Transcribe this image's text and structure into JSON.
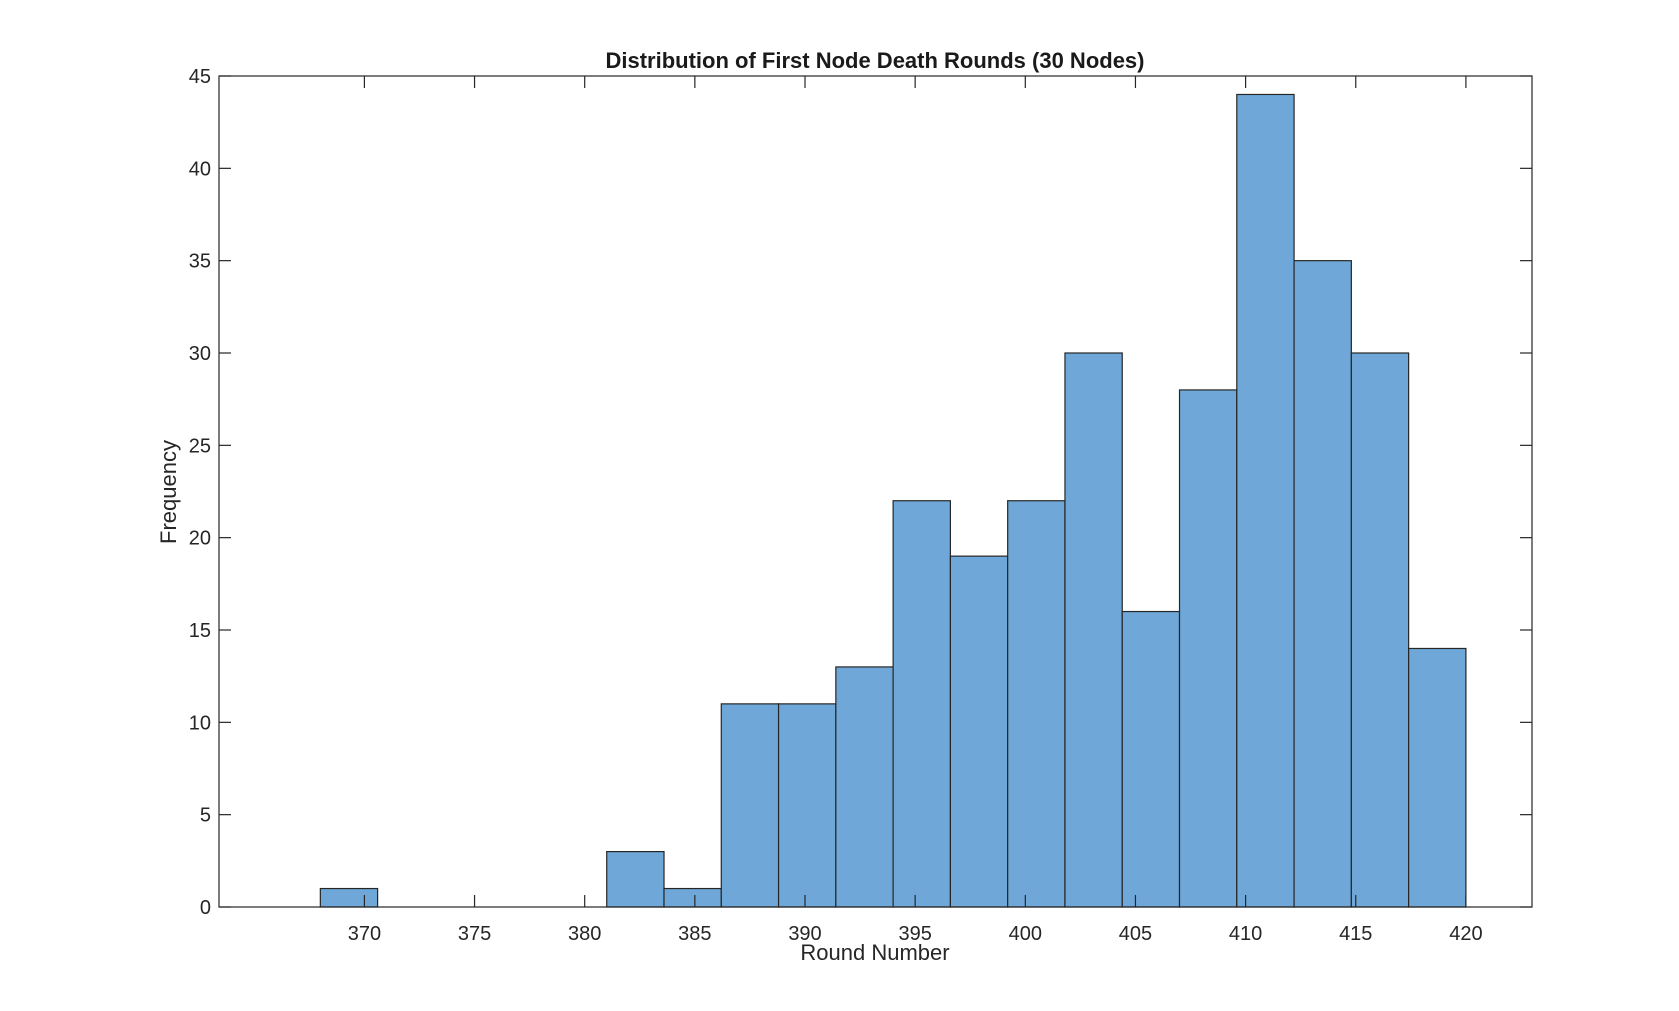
{
  "chart_data": {
    "type": "bar",
    "title": "Distribution of First Node Death Rounds (30 Nodes)",
    "xlabel": "Round Number",
    "ylabel": "Frequency",
    "xlim": [
      363.4,
      423
    ],
    "ylim": [
      0,
      45
    ],
    "xticks": [
      370,
      375,
      380,
      385,
      390,
      395,
      400,
      405,
      410,
      415,
      420
    ],
    "yticks": [
      0,
      5,
      10,
      15,
      20,
      25,
      30,
      35,
      40,
      45
    ],
    "bin_width": 2.6,
    "bins": [
      {
        "start": 368.0,
        "value": 1
      },
      {
        "start": 370.6,
        "value": 0
      },
      {
        "start": 373.2,
        "value": 0
      },
      {
        "start": 375.8,
        "value": 0
      },
      {
        "start": 378.4,
        "value": 0
      },
      {
        "start": 381.0,
        "value": 3
      },
      {
        "start": 383.6,
        "value": 1
      },
      {
        "start": 386.2,
        "value": 11
      },
      {
        "start": 388.8,
        "value": 11
      },
      {
        "start": 391.4,
        "value": 13
      },
      {
        "start": 394.0,
        "value": 22
      },
      {
        "start": 396.6,
        "value": 19
      },
      {
        "start": 399.2,
        "value": 22
      },
      {
        "start": 401.8,
        "value": 30
      },
      {
        "start": 404.4,
        "value": 16
      },
      {
        "start": 407.0,
        "value": 28
      },
      {
        "start": 409.6,
        "value": 44
      },
      {
        "start": 412.2,
        "value": 35
      },
      {
        "start": 414.8,
        "value": 30
      },
      {
        "start": 417.4,
        "value": 14
      }
    ],
    "bar_color": "#6fa8d8",
    "edge_color": "#262626",
    "grid": false,
    "legend": false
  }
}
